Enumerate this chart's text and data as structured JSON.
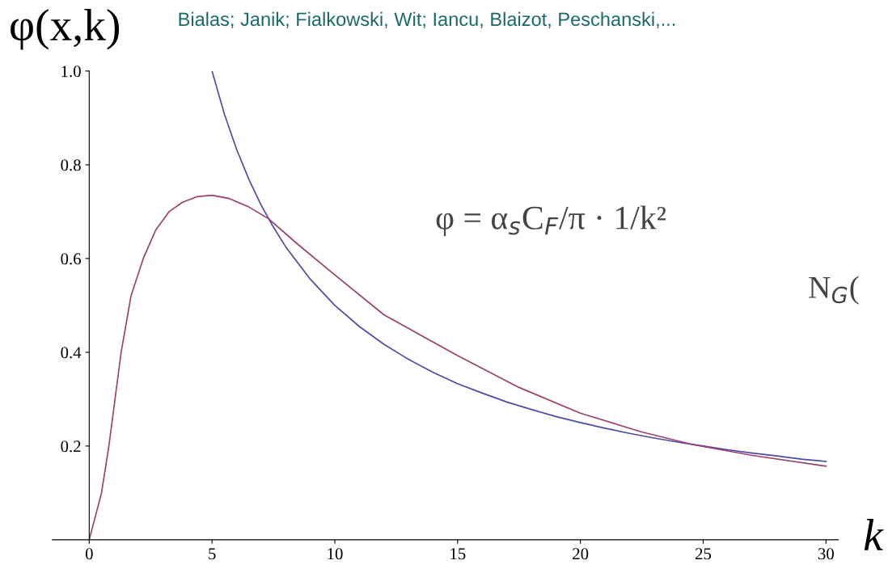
{
  "chart_data": {
    "type": "line",
    "ylabel": "φ(x,k)",
    "xlabel": "k",
    "annotations": [
      "Bialas; Janik; Fialkowski, Wit; Iancu, Blaizot, Peschanski,...",
      "φ = α$_{s}$C$_{F}$/π · 1/k²",
      "N$_{G}$("
    ],
    "xlim": [
      -1.5,
      30.5
    ],
    "xticks": [
      0,
      5,
      10,
      15,
      20,
      25,
      30
    ],
    "ylim": [
      0,
      1.0
    ],
    "yticks": [
      {
        "value": 0.2,
        "label": "0.2"
      },
      {
        "value": 0.4,
        "label": "0.4"
      },
      {
        "value": 0.6,
        "label": "0.6"
      },
      {
        "value": 0.8,
        "label": "0.8"
      },
      {
        "value": 1.0,
        "label": "1.0"
      }
    ],
    "grid": false,
    "legend": false,
    "marker": "none",
    "line_style": "solid",
    "series": [
      {
        "color": "#4b4ba6",
        "x": [
          5,
          5.5,
          6,
          6.5,
          7,
          7.5,
          8,
          9,
          10,
          11,
          12,
          13,
          14,
          15,
          16,
          17,
          18,
          19,
          20,
          21,
          22,
          23,
          24,
          25,
          26,
          27,
          28,
          29,
          30
        ],
        "values": [
          1.0,
          0.909,
          0.833,
          0.769,
          0.714,
          0.667,
          0.625,
          0.556,
          0.5,
          0.455,
          0.417,
          0.385,
          0.357,
          0.333,
          0.313,
          0.294,
          0.278,
          0.263,
          0.25,
          0.238,
          0.227,
          0.217,
          0.208,
          0.2,
          0.192,
          0.185,
          0.179,
          0.172,
          0.167
        ]
      },
      {
        "color": "#9b3f6e",
        "x": [
          0,
          0.5,
          0.8,
          1,
          1.3,
          1.7,
          2.2,
          2.7,
          3.25,
          3.8,
          4.4,
          5,
          5.7,
          6.5,
          7.3,
          8.5,
          10,
          12,
          15,
          17.5,
          20,
          22.5,
          24.5,
          27,
          30
        ],
        "values": [
          0,
          0.1,
          0.2,
          0.28,
          0.4,
          0.52,
          0.6,
          0.66,
          0.7,
          0.72,
          0.732,
          0.735,
          0.728,
          0.71,
          0.685,
          0.63,
          0.565,
          0.48,
          0.393,
          0.325,
          0.27,
          0.23,
          0.204,
          0.18,
          0.157
        ]
      }
    ]
  }
}
